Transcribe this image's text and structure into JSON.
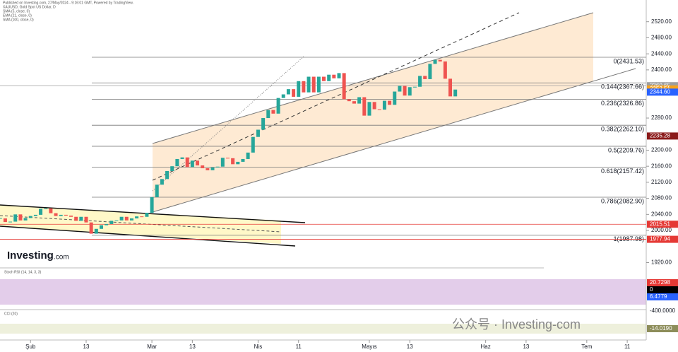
{
  "chart_data": {
    "type": "candlestick",
    "header": [
      "Published on Investing.com, 27/May/2024 - 9:16:01 GMT, Powered by TradingView.",
      "XAUUSD, Gold Spot US Dollar, D",
      "SMA (5, close, 0)",
      "EMA (21, close, 0)",
      "SMA (100, close, 0)"
    ],
    "closes": [
      2030,
      2021,
      2022,
      2040,
      2025,
      2031,
      2036,
      2039,
      2054,
      2055,
      2043,
      2036,
      2039,
      2037,
      2034,
      2024,
      2034,
      2020,
      1992,
      2004,
      2013,
      2016,
      2024,
      2025,
      2034,
      2025,
      2030,
      2035,
      2034,
      2044,
      2083,
      2114,
      2128,
      2148,
      2160,
      2178,
      2182,
      2158,
      2174,
      2162,
      2155,
      2150,
      2157,
      2159,
      2181,
      2180,
      2165,
      2171,
      2178,
      2194,
      2233,
      2251,
      2280,
      2300,
      2291,
      2330,
      2339,
      2352,
      2333,
      2372,
      2344,
      2383,
      2344,
      2383,
      2372,
      2388,
      2379,
      2392,
      2327,
      2322,
      2316,
      2332,
      2286,
      2320,
      2302,
      2301,
      2323,
      2313,
      2346,
      2360,
      2336,
      2357,
      2358,
      2385,
      2377,
      2415,
      2425,
      2421,
      2378,
      2334,
      2351
    ],
    "first_index": -9,
    "up_color": "#26a69a",
    "down_color": "#ef5350",
    "ylim": [
      1905,
      2560
    ],
    "xlim": [
      -9,
      119
    ],
    "yticks": [
      {
        "value": 2520,
        "label": "2520.00"
      },
      {
        "value": 2480,
        "label": "2480.00"
      },
      {
        "value": 2440,
        "label": "2440.00"
      },
      {
        "value": 2400,
        "label": "2400.00"
      },
      {
        "value": 2280,
        "label": "2280.00"
      },
      {
        "value": 2200,
        "label": "2200.00"
      },
      {
        "value": 2160,
        "label": "2160.00"
      },
      {
        "value": 2120,
        "label": "2120.00"
      },
      {
        "value": 2080,
        "label": "2080.00"
      },
      {
        "value": 2040,
        "label": "2040.00"
      },
      {
        "value": 2000,
        "label": "2000.00"
      },
      {
        "value": 1920,
        "label": "1920.00"
      }
    ],
    "xticks": [
      {
        "value": -3,
        "label": "Şub"
      },
      {
        "value": 8,
        "label": "13"
      },
      {
        "value": 21,
        "label": "Mar"
      },
      {
        "value": 29,
        "label": "13"
      },
      {
        "value": 42,
        "label": "Nis"
      },
      {
        "value": 50,
        "label": "11"
      },
      {
        "value": 64,
        "label": "Mayıs"
      },
      {
        "value": 72,
        "label": "13"
      },
      {
        "value": 87,
        "label": "Haz"
      },
      {
        "value": 95,
        "label": "13"
      },
      {
        "value": 107,
        "label": "Tem"
      },
      {
        "value": 115,
        "label": "11"
      }
    ],
    "fib_levels": [
      {
        "value": 2431.53,
        "label": "0(2431.53)"
      },
      {
        "value": 2367.66,
        "label": "0.144(2367.66)"
      },
      {
        "value": 2326.86,
        "label": "0.236(2326.86)"
      },
      {
        "value": 2262.1,
        "label": "0.382(2262.10)"
      },
      {
        "value": 2209.76,
        "label": "0.5(2209.76)"
      },
      {
        "value": 2157.42,
        "label": "0.618(2157.42)"
      },
      {
        "value": 2082.9,
        "label": "0.786(2082.90)"
      },
      {
        "value": 1987.98,
        "label": "1(1987.98)"
      }
    ],
    "price_tags": [
      {
        "value": 2360.65,
        "label": "2360.65",
        "color": "#9e9e9e"
      },
      {
        "value": 2352.51,
        "label": "2352.51",
        "color": "#f7a21b"
      },
      {
        "value": 2344.6,
        "label": "2344.60",
        "color": "#2962ff"
      },
      {
        "value": 2235.28,
        "label": "2235.28",
        "color": "#8b1a1a"
      },
      {
        "value": 2015.51,
        "label": "2015.51",
        "color": "#e53935"
      },
      {
        "value": 1977.94,
        "label": "1977.94",
        "color": "#e53935"
      }
    ],
    "stoch": {
      "title": "Stoch RSI (14, 14, 3, 3)",
      "tags": [
        {
          "label": "20.7298",
          "color": "#e53935"
        },
        {
          "label": "0",
          "color": "#000000"
        },
        {
          "label": "6.4779",
          "color": "#2962ff"
        }
      ]
    },
    "cci": {
      "title": "CCI (20)",
      "tags": [
        {
          "label": "-14.0190",
          "color": "#8d8d5a"
        }
      ],
      "axis_label": "-400.0000"
    },
    "logo": "Investing",
    "logo_suffix": ".com",
    "watermark": "公众号 · Investing-com"
  }
}
